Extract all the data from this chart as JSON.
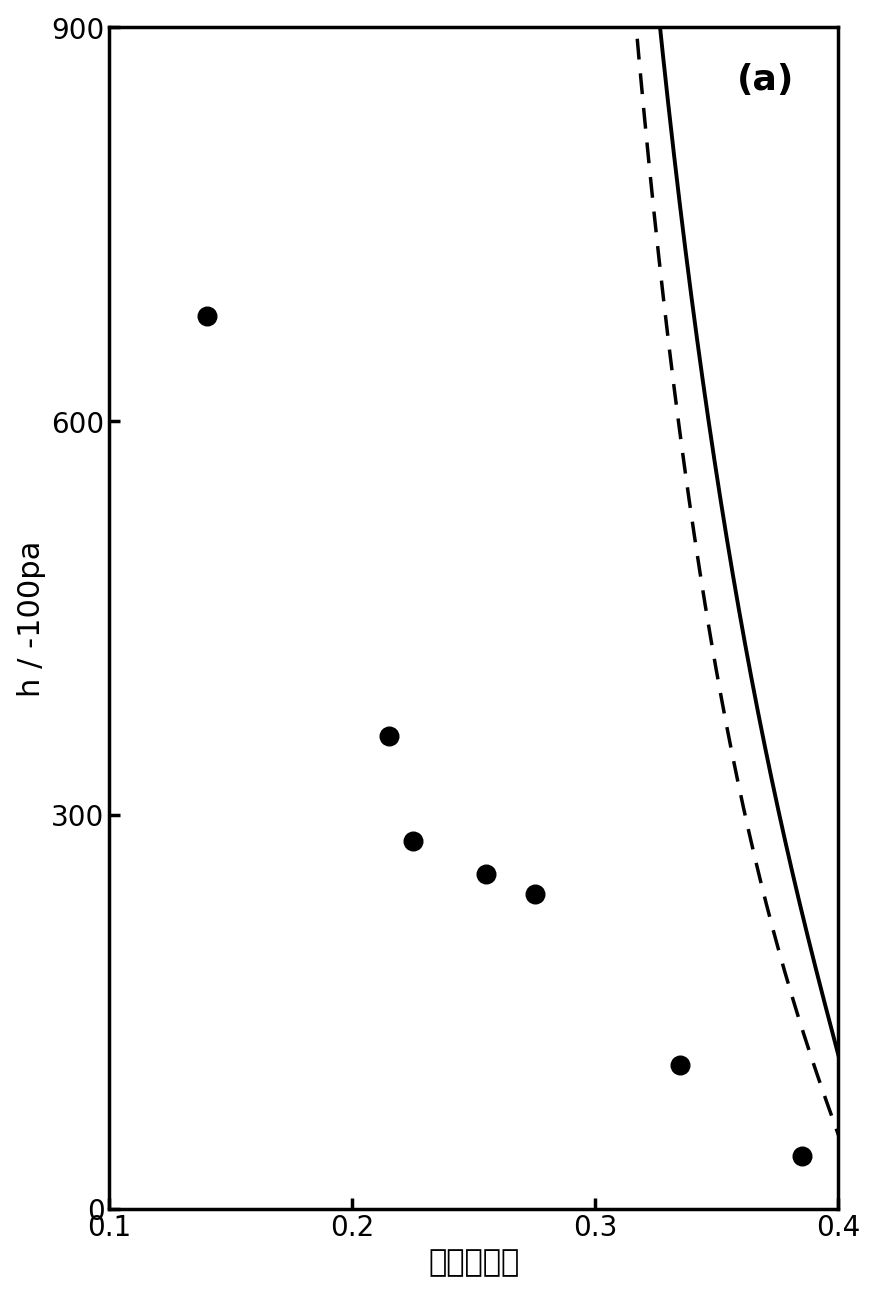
{
  "title_label": "(a)",
  "xlabel": "土壌含水率",
  "ylabel": "h / -100pa",
  "xlim": [
    0.1,
    0.4
  ],
  "ylim": [
    0,
    900
  ],
  "yticks": [
    0,
    300,
    600,
    900
  ],
  "xticks": [
    0.1,
    0.2,
    0.3,
    0.4
  ],
  "scatter_x": [
    0.14,
    0.215,
    0.225,
    0.255,
    0.275,
    0.335,
    0.385
  ],
  "scatter_y": [
    680,
    360,
    280,
    255,
    240,
    110,
    40
  ],
  "solid_curve_params": {
    "theta_r": 0.09,
    "theta_s": 0.415,
    "alpha": 0.0028,
    "n": 1.28
  },
  "dashed_curve_params": {
    "theta_r": 0.085,
    "theta_s": 0.41,
    "alpha": 0.0045,
    "n": 1.22
  },
  "line_color": "#000000",
  "scatter_color": "#000000",
  "background_color": "#ffffff",
  "scatter_size": 180,
  "solid_linewidth": 2.8,
  "dashed_linewidth": 2.5,
  "title_fontsize": 26,
  "label_fontsize": 22,
  "tick_fontsize": 20
}
